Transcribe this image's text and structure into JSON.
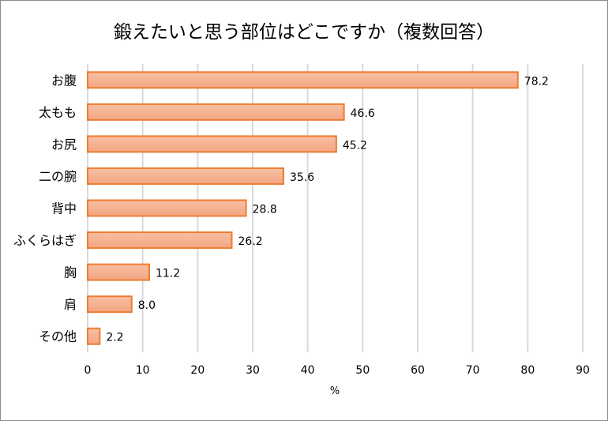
{
  "chart_data": {
    "type": "bar",
    "orientation": "horizontal",
    "title": "鍛えたいと思う部位はどこですか（複数回答）",
    "categories": [
      "お腹",
      "太もも",
      "お尻",
      "二の腕",
      "背中",
      "ふくらはぎ",
      "胸",
      "肩",
      "その他"
    ],
    "values": [
      78.2,
      46.6,
      45.2,
      35.6,
      28.8,
      26.2,
      11.2,
      8.0,
      2.2
    ],
    "value_labels": [
      "78.2",
      "46.6",
      "45.2",
      "35.6",
      "28.8",
      "26.2",
      "11.2",
      "8.0",
      "2.2"
    ],
    "xlabel": "%",
    "ylabel": "",
    "xlim": [
      0,
      90
    ],
    "xticks": [
      "0",
      "10",
      "20",
      "30",
      "40",
      "50",
      "60",
      "70",
      "80",
      "90"
    ],
    "grid": "vertical",
    "colors": {
      "bar_fill_top": "#f8c0a4",
      "bar_fill_bottom": "#f3a582",
      "bar_border": "#ed7d31",
      "grid": "#d9d9d9"
    }
  }
}
